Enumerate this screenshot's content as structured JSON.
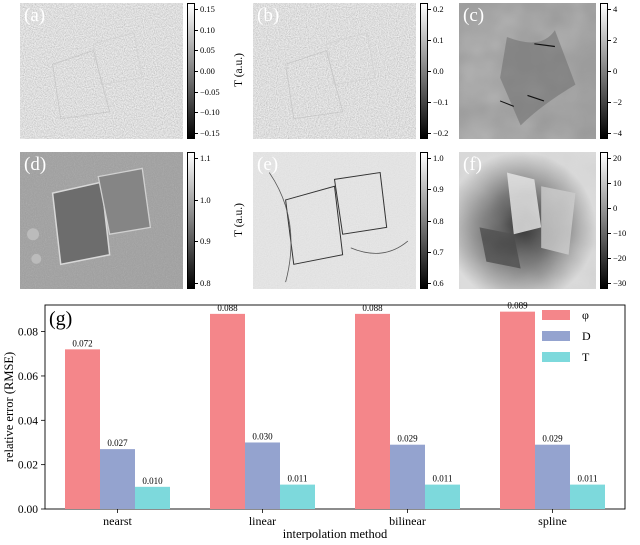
{
  "panels": [
    {
      "label": "(a)",
      "colorbar_label": "T (a.u.)",
      "ticks": [
        "0.15",
        "0.10",
        "0.05",
        "0.00",
        "−0.05",
        "−0.10",
        "−0.15"
      ],
      "texture": "noise-mid"
    },
    {
      "label": "(b)",
      "colorbar_label": "D (a.u.)",
      "ticks": [
        "0.2",
        "0.1",
        "0.0",
        "−0.1",
        "−0.2"
      ],
      "texture": "noise-mid"
    },
    {
      "label": "(c)",
      "colorbar_label": "φ (rad)",
      "ticks": [
        "4",
        "2",
        "0",
        "−2",
        "−4"
      ],
      "texture": "phase-wrapped"
    },
    {
      "label": "(d)",
      "colorbar_label": "T (a.u.)",
      "ticks": [
        "1.1",
        "1.0",
        "0.9",
        "0.8"
      ],
      "texture": "absorption"
    },
    {
      "label": "(e)",
      "colorbar_label": "D (a.u.)",
      "ticks": [
        "1.0",
        "0.9",
        "0.8",
        "0.7",
        "0.6"
      ],
      "texture": "dark-field"
    },
    {
      "label": "(f)",
      "colorbar_label": "φ (rad)",
      "ticks": [
        "20",
        "10",
        "0",
        "−10",
        "−20",
        "−30"
      ],
      "texture": "phase-unwrapped"
    }
  ],
  "chart_data": {
    "type": "bar",
    "panel_label": "(g)",
    "categories": [
      "nearst",
      "linear",
      "bilinear",
      "spline"
    ],
    "series": [
      {
        "name": "φ",
        "color": "#f4868a",
        "values": [
          0.072,
          0.088,
          0.088,
          0.089
        ],
        "labels": [
          "0.072",
          "0.088",
          "0.088",
          "0.089"
        ]
      },
      {
        "name": "D",
        "color": "#94a3cf",
        "values": [
          0.027,
          0.03,
          0.029,
          0.029
        ],
        "labels": [
          "0.027",
          "0.030",
          "0.029",
          "0.029"
        ]
      },
      {
        "name": "T",
        "color": "#7dd9dc",
        "values": [
          0.01,
          0.011,
          0.011,
          0.011
        ],
        "labels": [
          "0.010",
          "0.011",
          "0.011",
          "0.011"
        ]
      }
    ],
    "xlabel": "interpolation method",
    "ylabel": "relative error (RMSE)",
    "ylim": [
      0,
      0.092
    ],
    "yticks": [
      0.0,
      0.02,
      0.04,
      0.06,
      0.08
    ],
    "ytick_labels": [
      "0.00",
      "0.02",
      "0.04",
      "0.06",
      "0.08"
    ],
    "legend": "top-right",
    "grid": false
  }
}
